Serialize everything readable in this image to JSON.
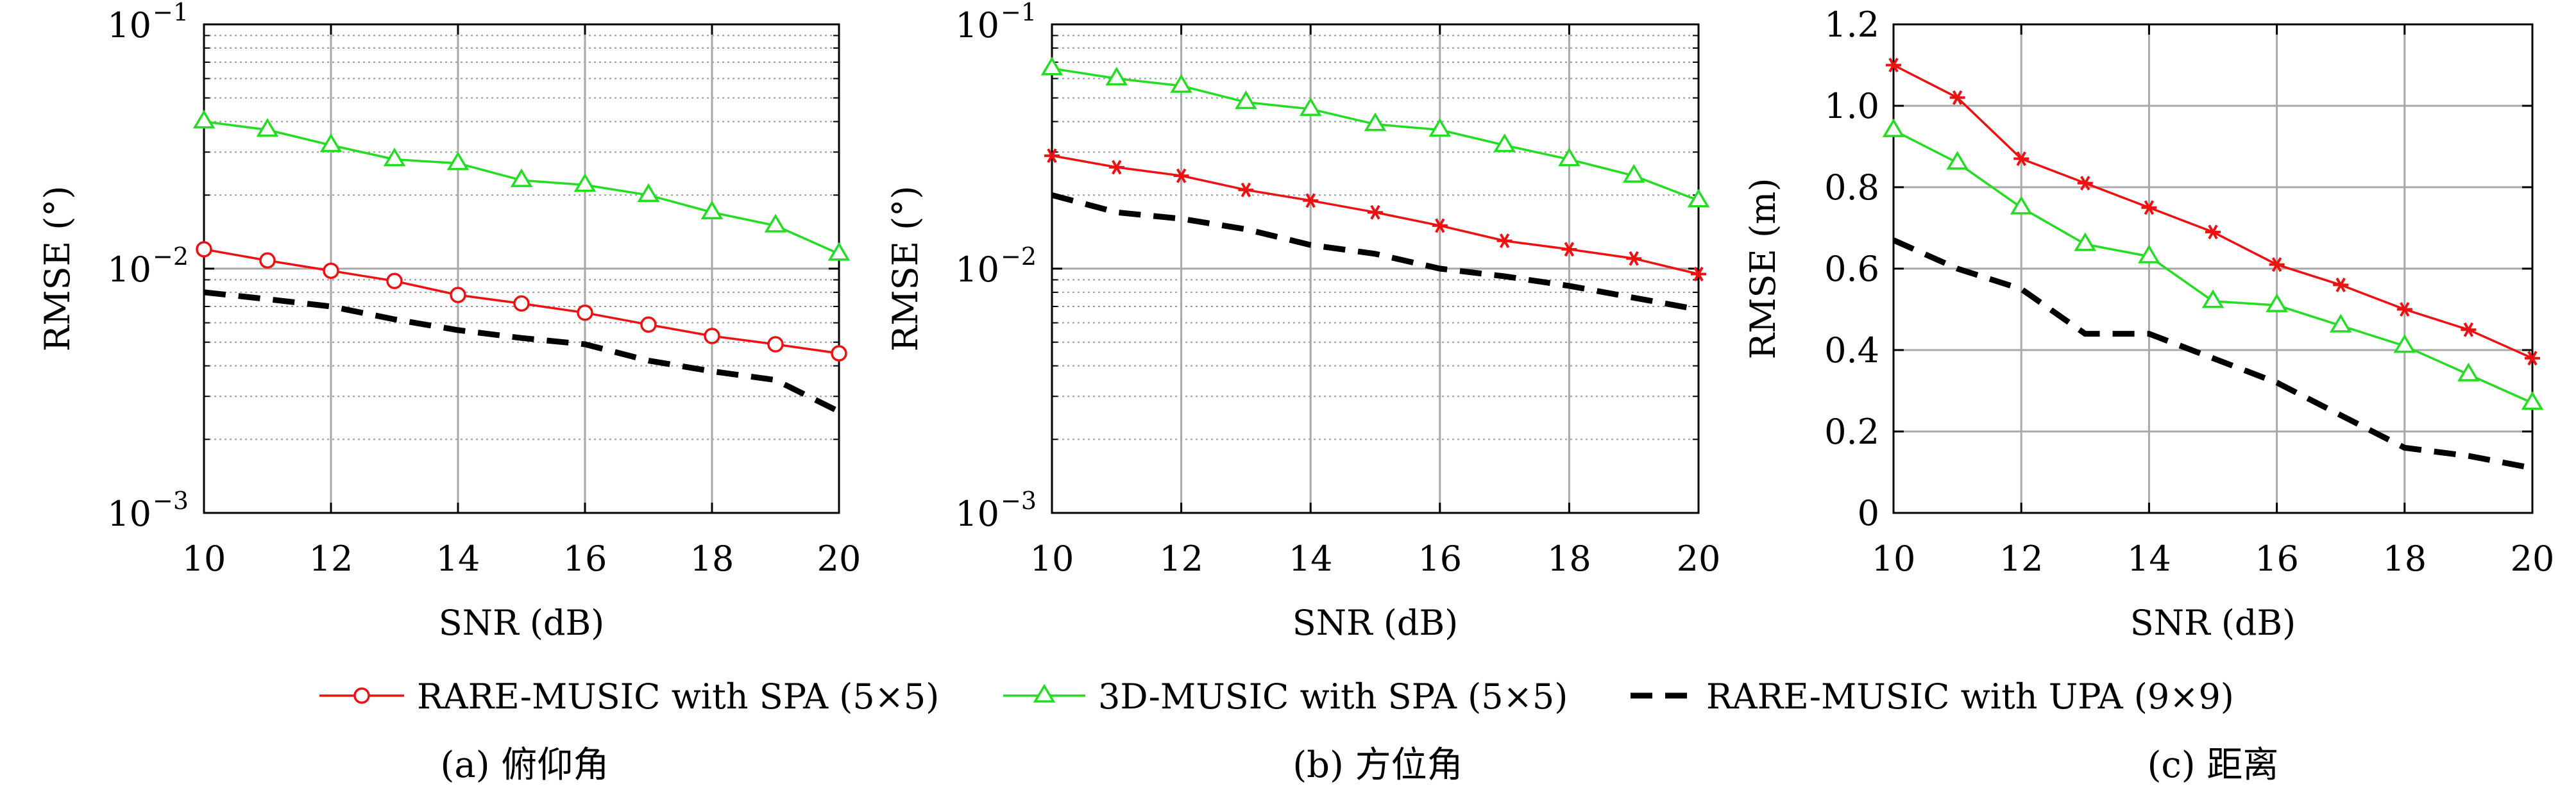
{
  "chart_data": [
    {
      "type": "line",
      "yscale": "log",
      "xlabel": "SNR (dB)",
      "ylabel": "RMSE (°)",
      "caption": "(a) 俯仰角",
      "xlim": [
        10,
        20
      ],
      "ylim": [
        0.001,
        0.1
      ],
      "xticks": [
        "10",
        "12",
        "14",
        "16",
        "18",
        "20"
      ],
      "yticks": [
        {
          "base": "10",
          "exp": "−1"
        },
        {
          "base": "10",
          "exp": "−2"
        },
        {
          "base": "10",
          "exp": "−3"
        }
      ],
      "grid": true,
      "series": [
        {
          "name": "RARE-MUSIC with SPA (5×5)",
          "x": [
            10,
            11,
            12,
            13,
            14,
            15,
            16,
            17,
            18,
            19,
            20
          ],
          "values": [
            0.012,
            0.0108,
            0.0098,
            0.0089,
            0.0078,
            0.0072,
            0.0066,
            0.0059,
            0.0053,
            0.0049,
            0.0045
          ]
        },
        {
          "name": "3D-MUSIC with SPA (5×5)",
          "x": [
            10,
            11,
            12,
            13,
            14,
            15,
            16,
            17,
            18,
            19,
            20
          ],
          "values": [
            0.04,
            0.037,
            0.032,
            0.028,
            0.027,
            0.023,
            0.022,
            0.02,
            0.017,
            0.015,
            0.0115
          ]
        },
        {
          "name": "RARE-MUSIC with UPA (9×9)",
          "x": [
            10,
            11,
            12,
            13,
            14,
            15,
            16,
            17,
            18,
            19,
            20
          ],
          "values": [
            0.008,
            0.0075,
            0.007,
            0.0062,
            0.0056,
            0.0052,
            0.0049,
            0.0042,
            0.0038,
            0.0035,
            0.0026
          ]
        }
      ]
    },
    {
      "type": "line",
      "yscale": "log",
      "xlabel": "SNR (dB)",
      "ylabel": "RMSE (°)",
      "caption": "(b) 方位角",
      "xlim": [
        10,
        20
      ],
      "ylim": [
        0.001,
        0.1
      ],
      "xticks": [
        "10",
        "12",
        "14",
        "16",
        "18",
        "20"
      ],
      "yticks": [
        {
          "base": "10",
          "exp": "−1"
        },
        {
          "base": "10",
          "exp": "−2"
        },
        {
          "base": "10",
          "exp": "−3"
        }
      ],
      "grid": true,
      "series": [
        {
          "name": "RARE-MUSIC with SPA (5×5)",
          "x": [
            10,
            11,
            12,
            13,
            14,
            15,
            16,
            17,
            18,
            19,
            20
          ],
          "values": [
            0.029,
            0.026,
            0.024,
            0.021,
            0.019,
            0.017,
            0.015,
            0.013,
            0.012,
            0.011,
            0.0095
          ]
        },
        {
          "name": "3D-MUSIC with SPA (5×5)",
          "x": [
            10,
            11,
            12,
            13,
            14,
            15,
            16,
            17,
            18,
            19,
            20
          ],
          "values": [
            0.066,
            0.06,
            0.056,
            0.048,
            0.045,
            0.039,
            0.037,
            0.032,
            0.028,
            0.024,
            0.019
          ]
        },
        {
          "name": "RARE-MUSIC with UPA (9×9)",
          "x": [
            10,
            11,
            12,
            13,
            14,
            15,
            16,
            17,
            18,
            19,
            20
          ],
          "values": [
            0.02,
            0.017,
            0.016,
            0.0145,
            0.0125,
            0.0115,
            0.01,
            0.0093,
            0.0085,
            0.0076,
            0.0068
          ]
        }
      ]
    },
    {
      "type": "line",
      "yscale": "linear",
      "xlabel": "SNR (dB)",
      "ylabel": "RMSE (m)",
      "caption": "(c) 距离",
      "xlim": [
        10,
        20
      ],
      "ylim": [
        0,
        1.2
      ],
      "xticks": [
        "10",
        "12",
        "14",
        "16",
        "18",
        "20"
      ],
      "yticks": [
        "0",
        "0.2",
        "0.4",
        "0.6",
        "0.8",
        "1.0",
        "1.2"
      ],
      "grid": true,
      "series": [
        {
          "name": "RARE-MUSIC with SPA (5×5)",
          "x": [
            10,
            11,
            12,
            13,
            14,
            15,
            16,
            17,
            18,
            19,
            20
          ],
          "values": [
            1.1,
            1.02,
            0.87,
            0.81,
            0.75,
            0.69,
            0.61,
            0.56,
            0.5,
            0.45,
            0.38
          ]
        },
        {
          "name": "3D-MUSIC with SPA (5×5)",
          "x": [
            10,
            11,
            12,
            13,
            14,
            15,
            16,
            17,
            18,
            19,
            20
          ],
          "values": [
            0.94,
            0.86,
            0.75,
            0.66,
            0.63,
            0.52,
            0.51,
            0.46,
            0.41,
            0.34,
            0.27
          ]
        },
        {
          "name": "RARE-MUSIC with UPA (9×9)",
          "x": [
            10,
            11,
            12,
            13,
            14,
            15,
            16,
            17,
            18,
            19,
            20
          ],
          "values": [
            0.67,
            0.6,
            0.55,
            0.44,
            0.44,
            0.38,
            0.32,
            0.24,
            0.16,
            0.14,
            0.11
          ]
        }
      ]
    }
  ],
  "legend": {
    "placement": "bottom-center",
    "items": [
      {
        "label": "RARE-MUSIC with SPA (5×5)",
        "color": "#ee1111",
        "marker": "circle"
      },
      {
        "label": "3D-MUSIC with SPA (5×5)",
        "color": "#22dd22",
        "marker": "triangle"
      },
      {
        "label": "RARE-MUSIC with UPA (9×9)",
        "color": "#000000",
        "marker": "dashed-line"
      }
    ]
  },
  "series_styles": {
    "panel_a": [
      {
        "color": "#ee1111",
        "marker": "circle"
      },
      {
        "color": "#22dd22",
        "marker": "triangle"
      },
      {
        "color": "#000000",
        "marker": "none"
      }
    ],
    "panel_b": [
      {
        "color": "#ee1111",
        "marker": "star"
      },
      {
        "color": "#22dd22",
        "marker": "triangle"
      },
      {
        "color": "#000000",
        "marker": "none"
      }
    ],
    "panel_c": [
      {
        "color": "#ee1111",
        "marker": "star"
      },
      {
        "color": "#22dd22",
        "marker": "triangle"
      },
      {
        "color": "#000000",
        "marker": "none"
      }
    ]
  }
}
